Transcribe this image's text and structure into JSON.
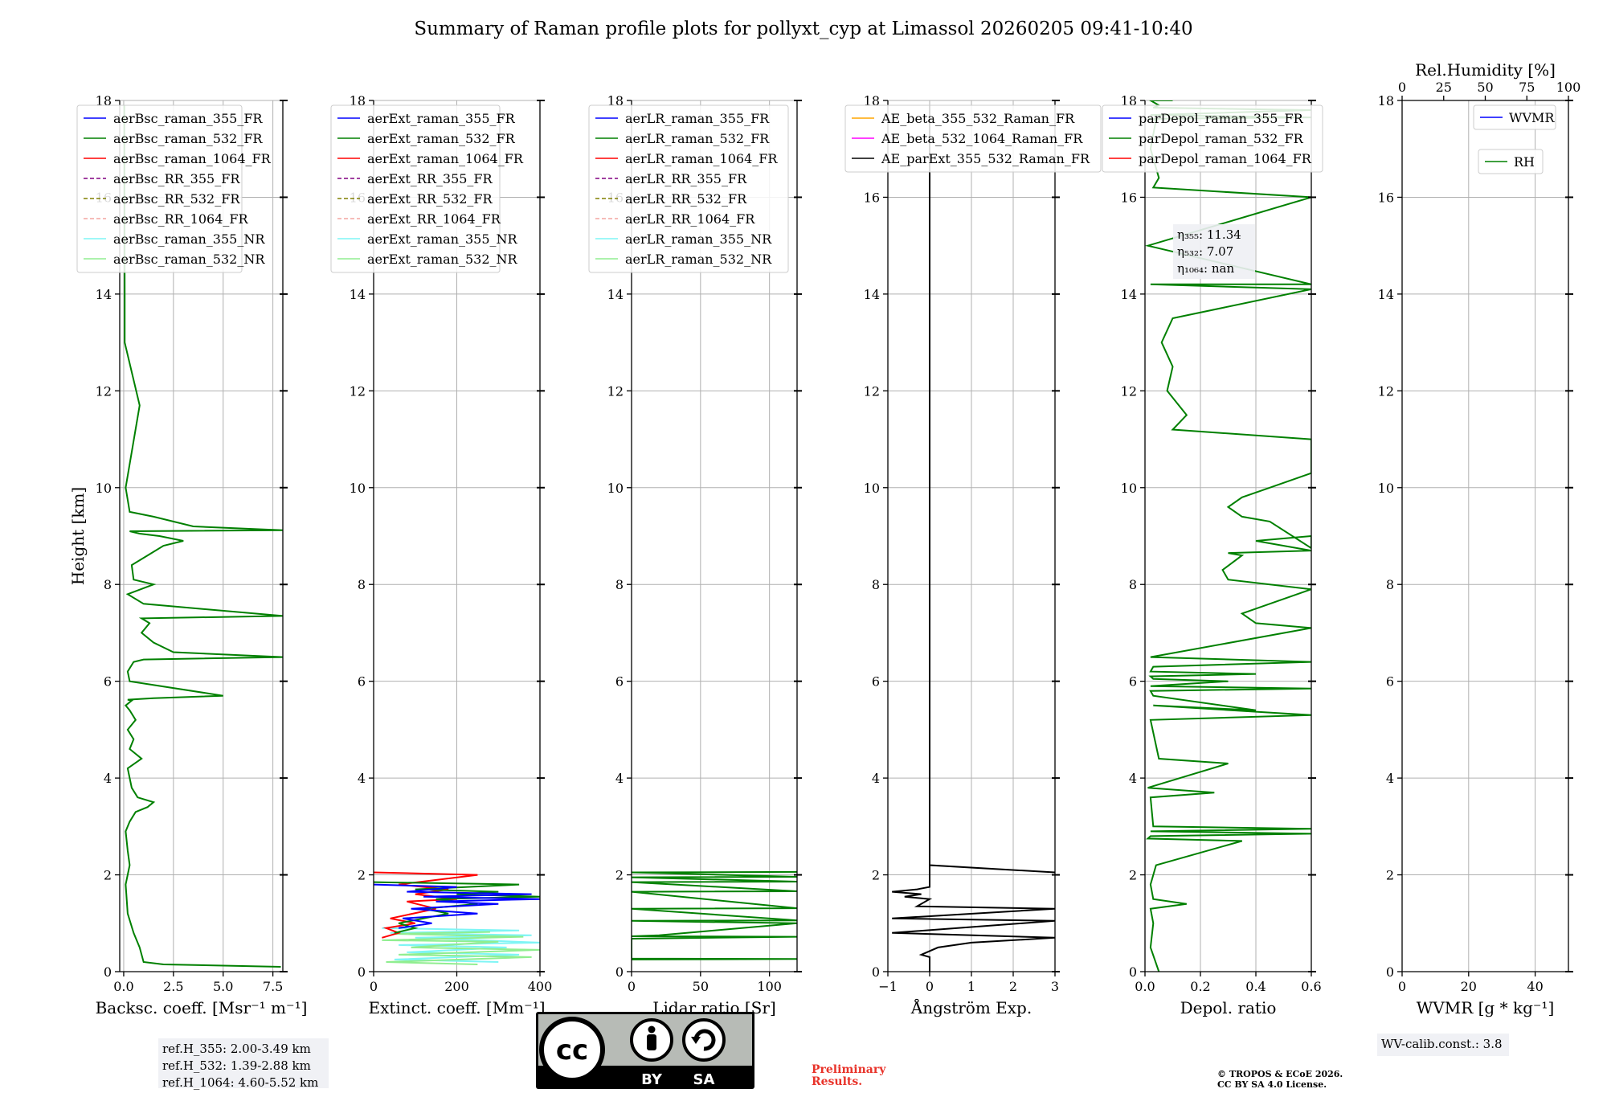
{
  "title": "Summary of Raman profile plots for pollyxt_cyp at Limassol 20260205 09:41-10:40",
  "chart_data": [
    {
      "id": "bsc",
      "type": "line",
      "xlabel": "Backsc. coeff. [Msr⁻¹ m⁻¹]",
      "ylabel": "Height [km]",
      "xlim": [
        -0.2,
        8.0
      ],
      "ylim": [
        0,
        18
      ],
      "xticks": [
        0,
        2.5,
        5.0,
        7.5
      ],
      "xtick_labels": [
        "0.0",
        "2.5",
        "5.0",
        "7.5"
      ],
      "yticks": [
        0,
        2,
        4,
        6,
        8,
        10,
        12,
        14,
        16,
        18
      ],
      "grid": true,
      "legend": "upper-left",
      "legend_entries": [
        {
          "label": "aerBsc_raman_355_FR",
          "color": "#0000ff",
          "dash": "solid"
        },
        {
          "label": "aerBsc_raman_532_FR",
          "color": "#008000",
          "dash": "solid"
        },
        {
          "label": "aerBsc_raman_1064_FR",
          "color": "#ff0000",
          "dash": "solid"
        },
        {
          "label": "aerBsc_RR_355_FR",
          "color": "#800080",
          "dash": "dashed"
        },
        {
          "label": "aerBsc_RR_532_FR",
          "color": "#808000",
          "dash": "dashed"
        },
        {
          "label": "aerBsc_RR_1064_FR",
          "color": "#f4a6a0",
          "dash": "dashed"
        },
        {
          "label": "aerBsc_raman_355_NR",
          "color": "#7ff5f5",
          "dash": "solid"
        },
        {
          "label": "aerBsc_raman_532_NR",
          "color": "#90ee90",
          "dash": "solid"
        }
      ],
      "series": [
        {
          "name": "aerBsc_raman_532_FR",
          "color": "#008000",
          "x": [
            7.9,
            2.0,
            1.0,
            0.8,
            0.5,
            0.2,
            0.1,
            0.3,
            0.2,
            0.1,
            0.3,
            0.6,
            1.2,
            1.5,
            0.7,
            0.4,
            0.2,
            0.9,
            0.3,
            0.5,
            0.2,
            0.6,
            0.3,
            0.1,
            0.4,
            0.2,
            1.5,
            5.0,
            0.3,
            0.2,
            0.5,
            1.0,
            8.0,
            2.5,
            1.5,
            0.9,
            1.3,
            0.9,
            8.0,
            1.0,
            0.2,
            1.5,
            0.5,
            0.4,
            1.2,
            2.0,
            3.0,
            1.8,
            0.8,
            0.3,
            8.0,
            3.5,
            1.5,
            0.3,
            0.1,
            0.8,
            0.05,
            0.05,
            0.03
          ],
          "y": [
            0.1,
            0.15,
            0.2,
            0.5,
            0.8,
            1.2,
            1.8,
            2.2,
            2.5,
            2.9,
            3.1,
            3.3,
            3.4,
            3.5,
            3.6,
            3.8,
            4.2,
            4.4,
            4.6,
            4.8,
            5.0,
            5.2,
            5.4,
            5.5,
            5.6,
            5.62,
            5.65,
            5.7,
            6.0,
            6.2,
            6.4,
            6.45,
            6.5,
            6.6,
            6.8,
            7.0,
            7.2,
            7.3,
            7.35,
            7.6,
            7.8,
            8.0,
            8.1,
            8.4,
            8.6,
            8.8,
            8.9,
            9.0,
            9.05,
            9.1,
            9.12,
            9.2,
            9.4,
            9.5,
            10.0,
            11.7,
            13.0,
            14.0,
            17.9
          ]
        }
      ],
      "annotation": [
        "ref.H_355: 2.00-3.49 km",
        "ref.H_532: 1.39-2.88 km",
        "ref.H_1064: 4.60-5.52 km"
      ]
    },
    {
      "id": "ext",
      "type": "line",
      "xlabel": "Extinct. coeff. [Mm⁻¹]",
      "xlim": [
        0,
        400
      ],
      "ylim": [
        0,
        18
      ],
      "xticks": [
        0,
        200,
        400
      ],
      "xtick_labels": [
        "0",
        "200",
        "400"
      ],
      "yticks": [
        0,
        2,
        4,
        6,
        8,
        10,
        12,
        14,
        16,
        18
      ],
      "grid": true,
      "legend": "upper-left",
      "legend_entries": [
        {
          "label": "aerExt_raman_355_FR",
          "color": "#0000ff",
          "dash": "solid"
        },
        {
          "label": "aerExt_raman_532_FR",
          "color": "#008000",
          "dash": "solid"
        },
        {
          "label": "aerExt_raman_1064_FR",
          "color": "#ff0000",
          "dash": "solid"
        },
        {
          "label": "aerExt_RR_355_FR",
          "color": "#800080",
          "dash": "dashed"
        },
        {
          "label": "aerExt_RR_532_FR",
          "color": "#808000",
          "dash": "dashed"
        },
        {
          "label": "aerExt_RR_1064_FR",
          "color": "#f4a6a0",
          "dash": "dashed"
        },
        {
          "label": "aerExt_raman_355_NR",
          "color": "#7ff5f5",
          "dash": "solid"
        },
        {
          "label": "aerExt_raman_532_NR",
          "color": "#90ee90",
          "dash": "solid"
        }
      ],
      "series": [
        {
          "name": "aerExt_raman_355_NR",
          "color": "#7ff5f5",
          "x": [
            300,
            50,
            350,
            80,
            320,
            60,
            400,
            100,
            380,
            40,
            350,
            20
          ],
          "y": [
            0.2,
            0.25,
            0.35,
            0.4,
            0.5,
            0.55,
            0.6,
            0.7,
            0.75,
            0.8,
            0.85,
            0.9
          ]
        },
        {
          "name": "aerExt_raman_532_NR",
          "color": "#90ee90",
          "x": [
            250,
            30,
            380,
            60,
            400,
            90,
            300,
            20,
            360,
            50,
            280
          ],
          "y": [
            0.15,
            0.2,
            0.3,
            0.35,
            0.45,
            0.5,
            0.62,
            0.65,
            0.72,
            0.78,
            0.82
          ]
        },
        {
          "name": "aerExt_raman_1064_FR",
          "color": "#ff0000",
          "x": [
            20,
            60,
            30,
            100,
            40,
            150,
            80,
            200,
            100,
            180,
            60,
            250,
            0
          ],
          "y": [
            0.7,
            0.8,
            0.9,
            1.0,
            1.1,
            1.3,
            1.45,
            1.5,
            1.6,
            1.7,
            1.8,
            2.0,
            2.05
          ]
        },
        {
          "name": "aerExt_raman_532_FR",
          "color": "#008000",
          "x": [
            50,
            100,
            60,
            180,
            120,
            250,
            150,
            400,
            200,
            300,
            100,
            350,
            0
          ],
          "y": [
            0.8,
            0.9,
            1.0,
            1.2,
            1.3,
            1.4,
            1.5,
            1.55,
            1.6,
            1.65,
            1.7,
            1.8,
            1.85
          ]
        },
        {
          "name": "aerExt_raman_355_FR",
          "color": "#0000ff",
          "x": [
            60,
            140,
            70,
            250,
            90,
            300,
            150,
            400,
            120,
            380,
            80,
            200,
            0
          ],
          "y": [
            0.9,
            1.0,
            1.1,
            1.2,
            1.3,
            1.4,
            1.45,
            1.5,
            1.55,
            1.6,
            1.65,
            1.75,
            1.8
          ]
        }
      ]
    },
    {
      "id": "lr",
      "type": "line",
      "xlabel": "Lidar ratio [Sr]",
      "xlim": [
        0,
        120
      ],
      "ylim": [
        0,
        18
      ],
      "xticks": [
        0,
        50,
        100
      ],
      "xtick_labels": [
        "0",
        "50",
        "100"
      ],
      "yticks": [
        0,
        2,
        4,
        6,
        8,
        10,
        12,
        14,
        16,
        18
      ],
      "grid": true,
      "legend": "upper-left",
      "legend_entries": [
        {
          "label": "aerLR_raman_355_FR",
          "color": "#0000ff",
          "dash": "solid"
        },
        {
          "label": "aerLR_raman_532_FR",
          "color": "#008000",
          "dash": "solid"
        },
        {
          "label": "aerLR_raman_1064_FR",
          "color": "#ff0000",
          "dash": "solid"
        },
        {
          "label": "aerLR_RR_355_FR",
          "color": "#800080",
          "dash": "dashed"
        },
        {
          "label": "aerLR_RR_532_FR",
          "color": "#808000",
          "dash": "dashed"
        },
        {
          "label": "aerLR_RR_1064_FR",
          "color": "#f4a6a0",
          "dash": "dashed"
        },
        {
          "label": "aerLR_raman_355_NR",
          "color": "#7ff5f5",
          "dash": "solid"
        },
        {
          "label": "aerLR_raman_532_NR",
          "color": "#90ee90",
          "dash": "solid"
        }
      ],
      "series": [
        {
          "name": "aerLR_raman_532_FR",
          "color": "#008000",
          "x": [
            0,
            120,
            0,
            0,
            120,
            0,
            20,
            40,
            60,
            80,
            100,
            120,
            0,
            120,
            0,
            120,
            0,
            120,
            0,
            120,
            0,
            120,
            0,
            120
          ],
          "y": [
            0.25,
            0.26,
            0.27,
            0.68,
            0.72,
            0.73,
            0.75,
            0.8,
            0.85,
            0.9,
            0.95,
            1.0,
            1.05,
            1.06,
            1.3,
            1.31,
            1.65,
            1.66,
            1.85,
            1.86,
            1.95,
            1.96,
            2.05,
            2.06
          ]
        }
      ]
    },
    {
      "id": "ae",
      "type": "line",
      "xlabel": "Ångström Exp.",
      "xlim": [
        -1,
        3
      ],
      "ylim": [
        0,
        18
      ],
      "xticks": [
        -1,
        0,
        1,
        2,
        3
      ],
      "xtick_labels": [
        "−1",
        "0",
        "1",
        "2",
        "3"
      ],
      "yticks": [
        0,
        2,
        4,
        6,
        8,
        10,
        12,
        14,
        16,
        18
      ],
      "grid": true,
      "legend": "upper-left",
      "legend_entries": [
        {
          "label": "AE_beta_355_532_Raman_FR",
          "color": "#ffa500",
          "dash": "solid"
        },
        {
          "label": "AE_beta_532_1064_Raman_FR",
          "color": "#ff00ff",
          "dash": "solid"
        },
        {
          "label": "AE_parExt_355_532_Raman_FR",
          "color": "#000000",
          "dash": "solid"
        }
      ],
      "series": [
        {
          "name": "AE_parExt_355_532_Raman_FR",
          "color": "#000000",
          "x": [
            0.0,
            0.0,
            -0.2,
            0.2,
            1.0,
            3.0,
            -0.9,
            3.0,
            -0.9,
            3.0,
            -0.3,
            0.0,
            -0.6,
            -0.2,
            -0.9,
            -0.3,
            0.0,
            0.0,
            3.0,
            0.0,
            0.0,
            0.0
          ],
          "y": [
            0.0,
            0.3,
            0.35,
            0.5,
            0.6,
            0.7,
            0.8,
            1.05,
            1.1,
            1.3,
            1.35,
            1.5,
            1.55,
            1.6,
            1.65,
            1.7,
            1.75,
            2.2,
            2.05,
            2.2,
            14.0,
            17.9
          ]
        }
      ]
    },
    {
      "id": "depol",
      "type": "line",
      "xlabel": "Depol. ratio",
      "xlim": [
        0,
        0.6
      ],
      "ylim": [
        0,
        18
      ],
      "xticks": [
        0,
        0.2,
        0.4,
        0.6
      ],
      "xtick_labels": [
        "0.0",
        "0.2",
        "0.4",
        "0.6"
      ],
      "yticks": [
        0,
        2,
        4,
        6,
        8,
        10,
        12,
        14,
        16,
        18
      ],
      "grid": true,
      "legend": "upper-left",
      "legend_entries": [
        {
          "label": "parDepol_raman_355_FR",
          "color": "#0000ff",
          "dash": "solid"
        },
        {
          "label": "parDepol_raman_532_FR",
          "color": "#008000",
          "dash": "solid"
        },
        {
          "label": "parDepol_raman_1064_FR",
          "color": "#ff0000",
          "dash": "solid"
        }
      ],
      "annotation": [
        "η₃₅₅: 11.34",
        "η₅₃₂: 7.07",
        "η₁₀₆₄: nan"
      ],
      "series": [
        {
          "name": "parDepol_raman_532_FR",
          "color": "#008000",
          "x": [
            0.05,
            0.02,
            0.03,
            0.02,
            0.15,
            0.03,
            0.02,
            0.04,
            0.35,
            0.01,
            0.02,
            0.6,
            0.02,
            0.6,
            0.03,
            0.02,
            0.25,
            0.01,
            0.3,
            0.05,
            0.02,
            0.6,
            0.03,
            0.4,
            0.03,
            0.02,
            0.6,
            0.02,
            0.3,
            0.03,
            0.02,
            0.4,
            0.02,
            0.03,
            0.6,
            0.02,
            0.6,
            0.4,
            0.35,
            0.45,
            0.6,
            0.3,
            0.28,
            0.35,
            0.3,
            0.6,
            0.4,
            0.6,
            0.6,
            0.45,
            0.35,
            0.3,
            0.35,
            0.45,
            0.6,
            0.6,
            0.1,
            0.15,
            0.08,
            0.1,
            0.06,
            0.1,
            0.6,
            0.02,
            0.6,
            0.01,
            0.6,
            0.03,
            0.05,
            0.02,
            0.04,
            0.01,
            0.6,
            0.02,
            0.6,
            0.03,
            0.05,
            0.02,
            0.1
          ],
          "y": [
            0.0,
            0.5,
            1.0,
            1.3,
            1.4,
            1.5,
            1.8,
            2.2,
            2.7,
            2.75,
            2.8,
            2.85,
            2.9,
            2.95,
            3.0,
            3.6,
            3.7,
            3.8,
            4.3,
            4.4,
            5.2,
            5.3,
            5.5,
            5.4,
            5.7,
            5.8,
            5.85,
            5.9,
            6.0,
            6.05,
            6.1,
            6.15,
            6.2,
            6.3,
            6.4,
            6.5,
            7.1,
            7.2,
            7.4,
            7.6,
            7.9,
            8.1,
            8.3,
            8.6,
            8.65,
            8.7,
            8.9,
            9.0,
            8.75,
            9.3,
            9.4,
            9.6,
            9.8,
            10.0,
            10.3,
            11.0,
            11.2,
            11.5,
            12.0,
            12.5,
            13.0,
            13.5,
            14.1,
            14.2,
            14.2,
            15.0,
            16.0,
            16.2,
            16.4,
            17.0,
            17.6,
            17.62,
            17.65,
            17.7,
            17.8,
            17.85,
            17.9,
            18.0,
            18.0
          ]
        }
      ]
    },
    {
      "id": "wv",
      "type": "line",
      "xlabel": "WVMR [g * kg⁻¹]",
      "xlim": [
        0,
        50
      ],
      "ylim": [
        0,
        18
      ],
      "xticks": [
        0,
        20,
        40
      ],
      "xtick_labels": [
        "0",
        "20",
        "40"
      ],
      "top_label": "Rel.Humidity [%]",
      "top_xlim": [
        0,
        100
      ],
      "top_xticks": [
        0,
        25,
        50,
        75,
        100
      ],
      "top_xtick_labels": [
        "0",
        "25",
        "50",
        "75",
        "100"
      ],
      "yticks": [
        0,
        2,
        4,
        6,
        8,
        10,
        12,
        14,
        16,
        18
      ],
      "grid": true,
      "legend": "upper-right",
      "legend_entries": [
        {
          "label": "WVMR",
          "color": "#0000ff",
          "dash": "solid"
        },
        {
          "label": "RH",
          "color": "#008000",
          "dash": "solid"
        }
      ],
      "annotation": [
        "WV-calib.const.: 3.8"
      ],
      "series": []
    }
  ],
  "footer": {
    "license_badge": {
      "cc": "cc",
      "by": "BY",
      "sa": "SA"
    },
    "preliminary": [
      "Preliminary",
      "Results."
    ],
    "copyright": [
      "© TROPOS & ECoE 2026.",
      "CC BY SA 4.0 License."
    ]
  },
  "colors": {
    "axis": "#000000",
    "grid": "#b0b0b0",
    "legend_border": "#cccccc",
    "box_bg": "#eeeff4",
    "preliminary": "#e8332a"
  }
}
